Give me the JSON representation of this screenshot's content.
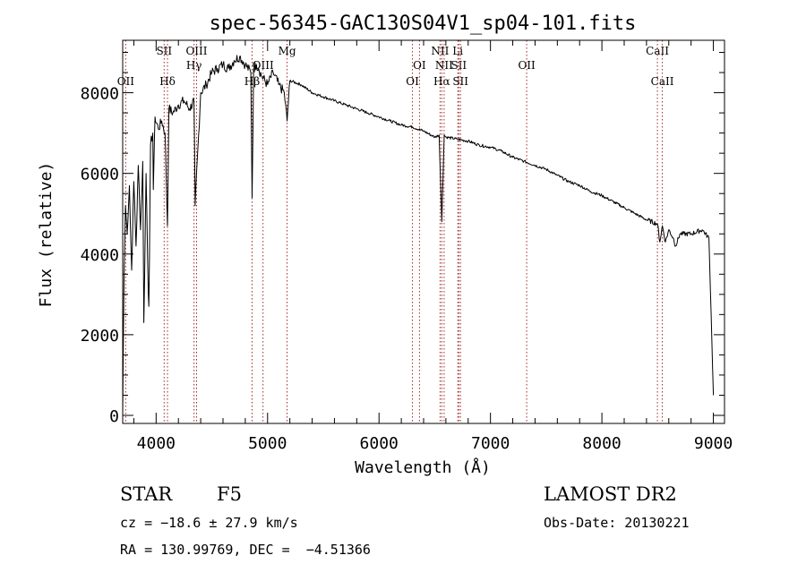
{
  "chart_data": {
    "type": "line",
    "title": "spec-56345-GAC130S04V1_sp04-101.fits",
    "xlabel": "Wavelength (Å)",
    "ylabel": "Flux (relative)",
    "xlim": [
      3700,
      9100
    ],
    "ylim": [
      -200,
      9300
    ],
    "x_ticks": [
      4000,
      5000,
      6000,
      7000,
      8000,
      9000
    ],
    "y_ticks": [
      0,
      2000,
      4000,
      6000,
      8000
    ],
    "grid": false,
    "series": [
      {
        "color": "#000000",
        "x": [
          3700,
          3705,
          3712,
          3725,
          3740,
          3760,
          3780,
          3800,
          3820,
          3840,
          3860,
          3880,
          3890,
          3910,
          3930,
          3935,
          3950,
          3970,
          3975,
          3990,
          4020,
          4050,
          4080,
          4102,
          4115,
          4150,
          4200,
          4250,
          4300,
          4340,
          4350,
          4400,
          4450,
          4500,
          4550,
          4600,
          4650,
          4700,
          4750,
          4800,
          4850,
          4861,
          4875,
          4900,
          4920,
          4950,
          5000,
          5050,
          5100,
          5150,
          5175,
          5200,
          5300,
          5400,
          5500,
          5600,
          5700,
          5800,
          5900,
          6000,
          6100,
          6200,
          6300,
          6400,
          6500,
          6540,
          6563,
          6585,
          6600,
          6700,
          6800,
          6900,
          7000,
          7100,
          7200,
          7300,
          7400,
          7500,
          7600,
          7700,
          7800,
          7900,
          8000,
          8100,
          8200,
          8300,
          8400,
          8498,
          8520,
          8542,
          8570,
          8600,
          8640,
          8662,
          8700,
          8800,
          8900,
          8960,
          8980,
          9000
        ],
        "y": [
          0,
          1500,
          3400,
          5200,
          4500,
          5700,
          3600,
          5800,
          4200,
          6200,
          4600,
          6300,
          2300,
          6000,
          3000,
          2700,
          6700,
          7000,
          5600,
          7400,
          7100,
          7300,
          7000,
          4700,
          7600,
          7500,
          7700,
          7800,
          7600,
          7800,
          5200,
          8000,
          8200,
          8500,
          8600,
          8700,
          8600,
          8800,
          8900,
          8700,
          8500,
          5400,
          8600,
          8700,
          8600,
          8400,
          8200,
          8500,
          8200,
          8000,
          7300,
          8300,
          8200,
          8000,
          7900,
          7800,
          7700,
          7600,
          7500,
          7400,
          7300,
          7200,
          7150,
          7050,
          6900,
          6950,
          4800,
          6950,
          6900,
          6850,
          6800,
          6700,
          6650,
          6550,
          6400,
          6300,
          6200,
          6100,
          5950,
          5800,
          5700,
          5550,
          5450,
          5300,
          5150,
          5000,
          4850,
          4750,
          4300,
          4700,
          4300,
          4600,
          4400,
          4200,
          4500,
          4500,
          4600,
          4400,
          2500,
          500
        ]
      }
    ],
    "lines": [
      {
        "label": "OII",
        "x": 3727,
        "row": 2
      },
      {
        "label": "SII",
        "x": 4072,
        "row": 0
      },
      {
        "label": "Hδ",
        "x": 4102,
        "row": 2
      },
      {
        "label": "OIII",
        "x": 4363,
        "row": 0
      },
      {
        "label": "Hγ",
        "x": 4340,
        "row": 1
      },
      {
        "label": "Hβ",
        "x": 4861,
        "row": 2
      },
      {
        "label": "OIII",
        "x": 4959,
        "row": 1
      },
      {
        "label": "Mg",
        "x": 5175,
        "row": 0
      },
      {
        "label": "OI",
        "x": 6300,
        "row": 2
      },
      {
        "label": "OI",
        "x": 6363,
        "row": 1
      },
      {
        "label": "NII",
        "x": 6548,
        "row": 0
      },
      {
        "label": "Hα",
        "x": 6563,
        "row": 2
      },
      {
        "label": "NII",
        "x": 6584,
        "row": 1
      },
      {
        "label": "Li",
        "x": 6707,
        "row": 0
      },
      {
        "label": "SII",
        "x": 6716,
        "row": 1
      },
      {
        "label": "SII",
        "x": 6731,
        "row": 2
      },
      {
        "label": "OII",
        "x": 7325,
        "row": 1
      },
      {
        "label": "CaII",
        "x": 8498,
        "row": 0
      },
      {
        "label": "CaII",
        "x": 8542,
        "row": 2
      }
    ]
  },
  "info": {
    "class": "STAR",
    "subclass": "F5",
    "survey": "LAMOST DR2",
    "cz": "cz = −18.6 ± 27.9 km/s",
    "obs_date": "Obs-Date: 20130221",
    "coords": "RA = 130.99769, DEC =  −4.51366"
  }
}
